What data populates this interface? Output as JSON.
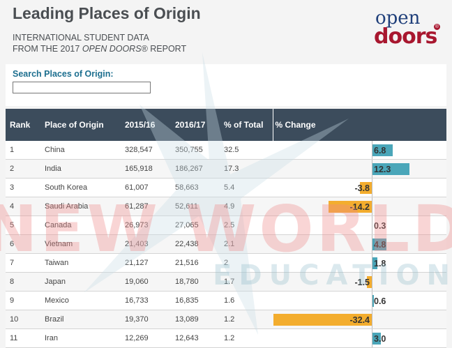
{
  "header": {
    "title": "Leading Places of Origin",
    "subtitle_line1": "INTERNATIONAL STUDENT DATA",
    "subtitle_line2_prefix": "FROM THE 2017 ",
    "subtitle_line2_italic": "OPEN DOORS",
    "subtitle_line2_suffix": "® REPORT"
  },
  "logo": {
    "top": "open",
    "bottom": "doors",
    "reg": "®"
  },
  "search": {
    "label": "Search Places of Origin:",
    "value": "",
    "placeholder": ""
  },
  "table": {
    "columns": [
      "Rank",
      "Place of Origin",
      "2015/16",
      "2016/17",
      "% of Total",
      "% Change"
    ],
    "rows": [
      {
        "rank": "1",
        "place": "China",
        "y2015": "328,547",
        "y2016": "350,755",
        "pct_total": "32.5",
        "change": "6.8"
      },
      {
        "rank": "2",
        "place": "India",
        "y2015": "165,918",
        "y2016": "186,267",
        "pct_total": "17.3",
        "change": "12.3"
      },
      {
        "rank": "3",
        "place": "South Korea",
        "y2015": "61,007",
        "y2016": "58,663",
        "pct_total": "5.4",
        "change": "-3.8"
      },
      {
        "rank": "4",
        "place": "Saudi Arabia",
        "y2015": "61,287",
        "y2016": "52,611",
        "pct_total": "4.9",
        "change": "-14.2"
      },
      {
        "rank": "5",
        "place": "Canada",
        "y2015": "26,973",
        "y2016": "27,065",
        "pct_total": "2.5",
        "change": "0.3"
      },
      {
        "rank": "6",
        "place": "Vietnam",
        "y2015": "21,403",
        "y2016": "22,438",
        "pct_total": "2.1",
        "change": "4.8"
      },
      {
        "rank": "7",
        "place": "Taiwan",
        "y2015": "21,127",
        "y2016": "21,516",
        "pct_total": "2",
        "change": "1.8"
      },
      {
        "rank": "8",
        "place": "Japan",
        "y2015": "19,060",
        "y2016": "18,780",
        "pct_total": "1.7",
        "change": "-1.5"
      },
      {
        "rank": "9",
        "place": "Mexico",
        "y2015": "16,733",
        "y2016": "16,835",
        "pct_total": "1.6",
        "change": "0.6"
      },
      {
        "rank": "10",
        "place": "Brazil",
        "y2015": "19,370",
        "y2016": "13,089",
        "pct_total": "1.2",
        "change": "-32.4"
      },
      {
        "rank": "11",
        "place": "Iran",
        "y2015": "12,269",
        "y2016": "12,643",
        "pct_total": "1.2",
        "change": "3.0"
      }
    ]
  },
  "colors": {
    "header_bg": "#3c4c5c",
    "positive_bar": "#4aa6b9",
    "negative_bar": "#f3ad2e",
    "search_label": "#1d6f8f"
  },
  "watermark": {
    "line1": "NEW WORLD",
    "line2": "EDUCATION"
  }
}
